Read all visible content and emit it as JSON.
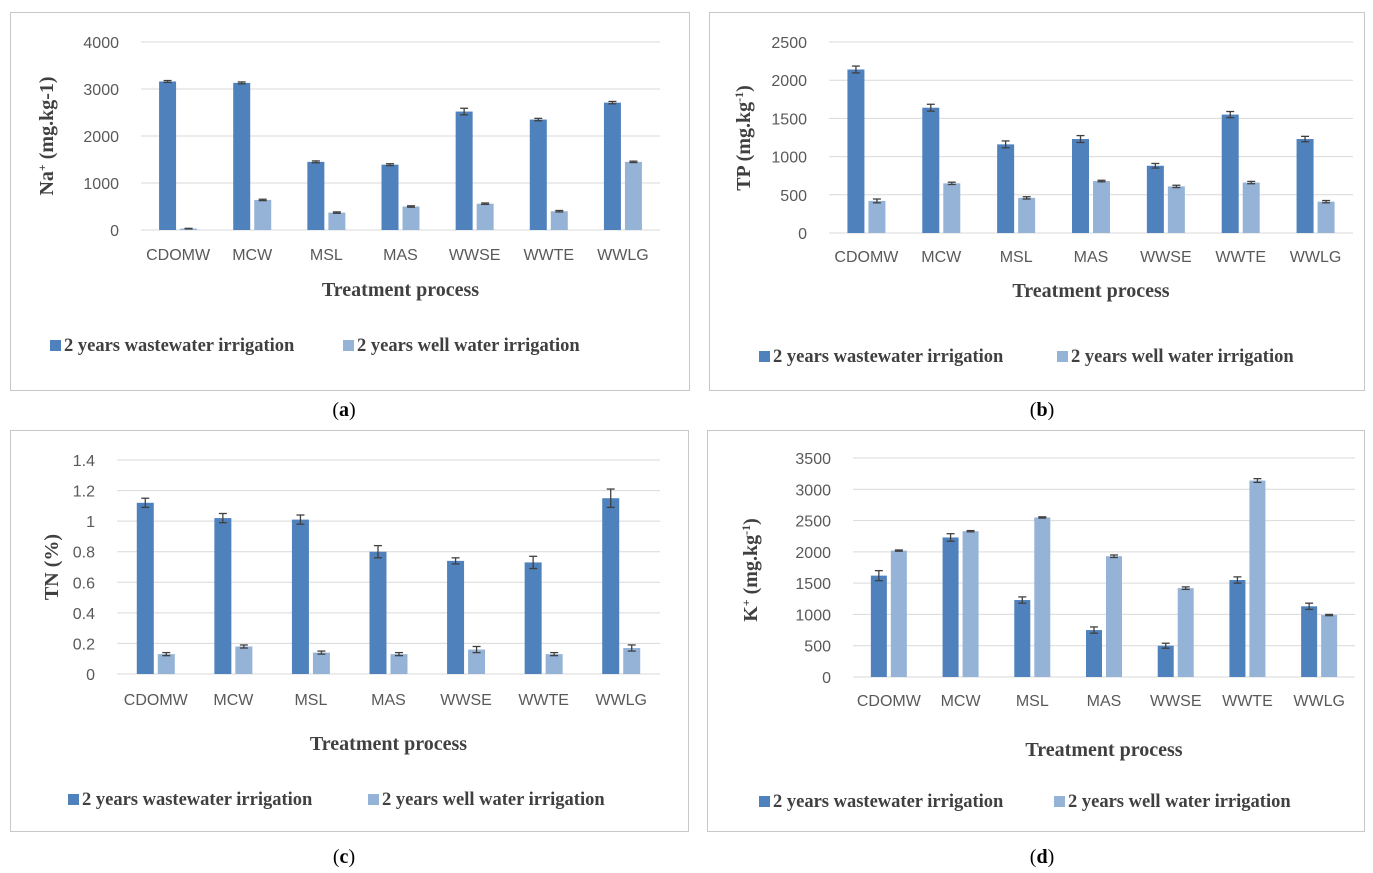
{
  "colors": {
    "wastewater": "#4f81bd",
    "wellwater": "#95b3d7",
    "grid": "#d9d9d9",
    "frame": "#c8c8c8",
    "errbar": "#404040"
  },
  "chart_data": [
    {
      "id": "a",
      "caption": "a",
      "type": "bar",
      "categories": [
        "CDOMW",
        "MCW",
        "MSL",
        "MAS",
        "WWSE",
        "WWTE",
        "WWLG"
      ],
      "ylabel_main": "Na",
      "ylabel_sup": "+",
      "ylabel_rest": " (mg.kg-1)",
      "xlabel": "Treatment process",
      "ylim": [
        0,
        4000
      ],
      "yticks": [
        0,
        1000,
        2000,
        3000,
        4000
      ],
      "legend": "bottom",
      "series": [
        {
          "name": "2 years wastewater irrigation",
          "values": [
            3160,
            3130,
            1450,
            1390,
            2520,
            2350,
            2710
          ],
          "errors": [
            20,
            20,
            20,
            20,
            70,
            25,
            25
          ]
        },
        {
          "name": "2 years well water irrigation",
          "values": [
            30,
            640,
            370,
            500,
            560,
            400,
            1450
          ],
          "errors": [
            5,
            15,
            15,
            15,
            15,
            15,
            15
          ]
        }
      ]
    },
    {
      "id": "b",
      "caption": "b",
      "type": "bar",
      "categories": [
        "CDOMW",
        "MCW",
        "MSL",
        "MAS",
        "WWSE",
        "WWTE",
        "WWLG"
      ],
      "ylabel_main": "TP (mg.kg",
      "ylabel_sup": "-1",
      "ylabel_rest": ")",
      "xlabel": "Treatment process",
      "ylim": [
        0,
        2500
      ],
      "yticks": [
        0,
        500,
        1000,
        1500,
        2000,
        2500
      ],
      "legend": "bottom",
      "series": [
        {
          "name": "2 years wastewater irrigation",
          "values": [
            2140,
            1640,
            1160,
            1230,
            880,
            1550,
            1230
          ],
          "errors": [
            45,
            45,
            45,
            45,
            30,
            40,
            35
          ]
        },
        {
          "name": "2 years well water irrigation",
          "values": [
            420,
            650,
            460,
            680,
            610,
            660,
            410
          ],
          "errors": [
            25,
            15,
            15,
            10,
            15,
            15,
            15
          ]
        }
      ]
    },
    {
      "id": "c",
      "caption": "c",
      "type": "bar",
      "categories": [
        "CDOMW",
        "MCW",
        "MSL",
        "MAS",
        "WWSE",
        "WWTE",
        "WWLG"
      ],
      "ylabel_main": "TN (%)",
      "ylabel_sup": "",
      "ylabel_rest": "",
      "xlabel": "Treatment process",
      "ylim": [
        0,
        1.4
      ],
      "yticks": [
        0,
        0.2,
        0.4,
        0.6,
        0.8,
        1,
        1.2,
        1.4
      ],
      "legend": "bottom",
      "series": [
        {
          "name": "2 years wastewater irrigation",
          "values": [
            1.12,
            1.02,
            1.01,
            0.8,
            0.74,
            0.73,
            1.15
          ],
          "errors": [
            0.03,
            0.03,
            0.03,
            0.04,
            0.02,
            0.04,
            0.06
          ]
        },
        {
          "name": "2 years well water irrigation",
          "values": [
            0.13,
            0.18,
            0.14,
            0.13,
            0.16,
            0.13,
            0.17
          ],
          "errors": [
            0.01,
            0.01,
            0.01,
            0.01,
            0.02,
            0.01,
            0.02
          ]
        }
      ]
    },
    {
      "id": "d",
      "caption": "d",
      "type": "bar",
      "categories": [
        "CDOMW",
        "MCW",
        "MSL",
        "MAS",
        "WWSE",
        "WWTE",
        "WWLG"
      ],
      "ylabel_main": "K",
      "ylabel_sup": "+",
      "ylabel_rest": " (mg.kg",
      "ylabel_sup2": "-1",
      "ylabel_rest2": ")",
      "xlabel": "Treatment process",
      "ylim": [
        0,
        3500
      ],
      "yticks": [
        0,
        500,
        1000,
        1500,
        2000,
        2500,
        3000,
        3500
      ],
      "legend": "bottom",
      "series": [
        {
          "name": "2 years wastewater irrigation",
          "values": [
            1620,
            2230,
            1230,
            750,
            500,
            1550,
            1130
          ],
          "errors": [
            80,
            60,
            50,
            50,
            40,
            50,
            50
          ]
        },
        {
          "name": "2 years well water irrigation",
          "values": [
            2020,
            2330,
            2550,
            1930,
            1420,
            3140,
            990
          ],
          "errors": [
            10,
            10,
            10,
            20,
            20,
            30,
            10
          ]
        }
      ]
    }
  ]
}
